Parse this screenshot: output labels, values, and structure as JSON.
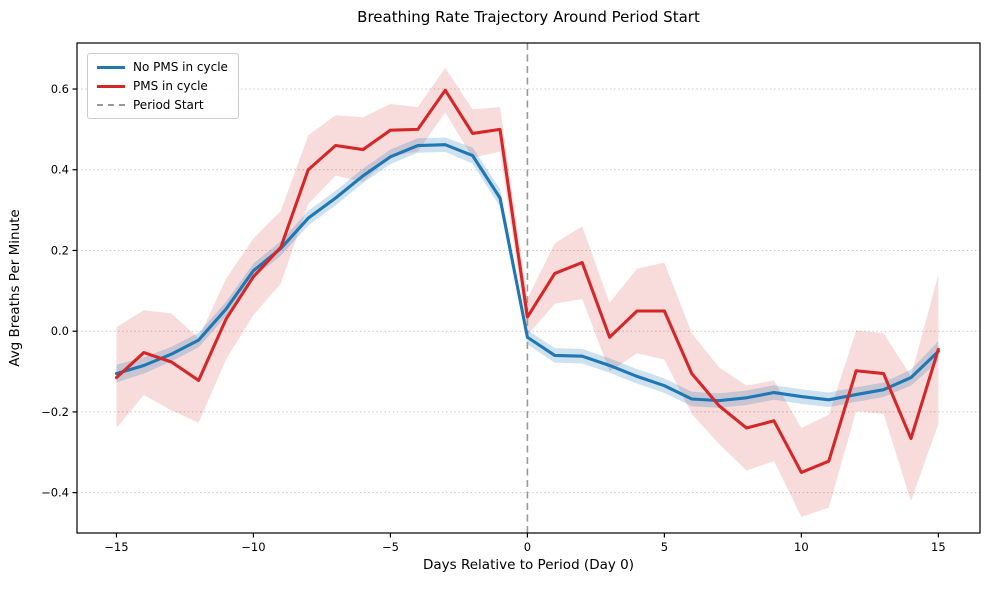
{
  "chart_data": {
    "type": "line",
    "title": "Breathing Rate Trajectory Around Period Start",
    "xlabel": "Days Relative to Period (Day 0)",
    "ylabel": "Avg Breaths Per Minute",
    "x": [
      -15,
      -14,
      -13,
      -12,
      -11,
      -10,
      -9,
      -8,
      -7,
      -6,
      -5,
      -4,
      -3,
      -2,
      -1,
      0,
      1,
      2,
      3,
      4,
      5,
      6,
      7,
      8,
      9,
      10,
      11,
      12,
      13,
      14,
      15
    ],
    "series": [
      {
        "name": "No PMS in cycle",
        "color": "#1f77b4",
        "band_color": "rgba(31,119,180,0.22)",
        "values": [
          -0.105,
          -0.085,
          -0.057,
          -0.022,
          0.055,
          0.15,
          0.205,
          0.28,
          0.33,
          0.385,
          0.432,
          0.46,
          0.462,
          0.435,
          0.33,
          -0.015,
          -0.06,
          -0.062,
          -0.085,
          -0.112,
          -0.135,
          -0.168,
          -0.172,
          -0.165,
          -0.152,
          -0.162,
          -0.17,
          -0.157,
          -0.145,
          -0.115,
          -0.05
        ],
        "band_halfwidth": [
          0.022,
          0.02,
          0.018,
          0.018,
          0.018,
          0.018,
          0.018,
          0.018,
          0.018,
          0.018,
          0.018,
          0.018,
          0.018,
          0.02,
          0.022,
          0.018,
          0.018,
          0.018,
          0.018,
          0.018,
          0.018,
          0.018,
          0.018,
          0.018,
          0.018,
          0.018,
          0.018,
          0.018,
          0.018,
          0.02,
          0.025
        ]
      },
      {
        "name": "PMS in cycle",
        "color": "#d62728",
        "band_color": "rgba(214,39,40,0.16)",
        "values": [
          -0.115,
          -0.053,
          -0.076,
          -0.122,
          0.03,
          0.135,
          0.208,
          0.4,
          0.46,
          0.45,
          0.498,
          0.5,
          0.597,
          0.49,
          0.5,
          0.035,
          0.143,
          0.17,
          -0.015,
          0.05,
          0.05,
          -0.105,
          -0.185,
          -0.24,
          -0.222,
          -0.35,
          -0.322,
          -0.098,
          -0.105,
          -0.266,
          -0.045
        ],
        "band_halfwidth": [
          0.125,
          0.105,
          0.12,
          0.105,
          0.1,
          0.095,
          0.09,
          0.085,
          0.075,
          0.08,
          0.065,
          0.055,
          0.055,
          0.06,
          0.055,
          0.045,
          0.075,
          0.09,
          0.085,
          0.105,
          0.12,
          0.1,
          0.095,
          0.105,
          0.1,
          0.11,
          0.115,
          0.1,
          0.1,
          0.155,
          0.185
        ]
      }
    ],
    "vline": {
      "x": 0,
      "label": "Period Start",
      "color": "#999999",
      "style": "dashed"
    },
    "xticks": [
      -15,
      -10,
      -5,
      0,
      5,
      10,
      15
    ],
    "xtick_labels": [
      "−15",
      "−10",
      "−5",
      "0",
      "5",
      "10",
      "15"
    ],
    "yticks": [
      -0.4,
      -0.2,
      0.0,
      0.2,
      0.4,
      0.6
    ],
    "ytick_labels": [
      "−0.4",
      "−0.2",
      "0.0",
      "0.2",
      "0.4",
      "0.6"
    ],
    "xlim": [
      -16.44,
      16.52
    ],
    "ylim": [
      -0.5,
      0.714
    ],
    "grid": "horizontal-dotted",
    "grid_color": "#c8c8c8",
    "spine_color": "#000000",
    "legend_position": "upper-left"
  },
  "legend": {
    "items": [
      {
        "label": "No PMS in cycle",
        "color": "#1f77b4",
        "style": "solid"
      },
      {
        "label": "PMS in cycle",
        "color": "#d62728",
        "style": "solid"
      },
      {
        "label": "Period Start",
        "color": "#999999",
        "style": "dashed"
      }
    ]
  }
}
